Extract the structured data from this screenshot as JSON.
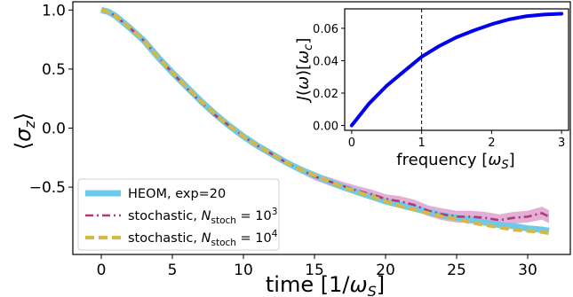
{
  "chart_data": [
    {
      "type": "line",
      "xlabel": "time [1/ω_S]",
      "ylabel": "⟨σ_z⟩",
      "xlim": [
        -2,
        33
      ],
      "ylim": [
        -1.07,
        1.07
      ],
      "x_ticks": [
        0,
        5,
        10,
        15,
        20,
        25,
        30
      ],
      "y_ticks": [
        1.0,
        0.5,
        0.0,
        -0.5
      ],
      "y_tick_labels": [
        "1.0",
        "0.5",
        "0.0",
        "−0.5"
      ],
      "legend_position": "lower-left",
      "series": [
        {
          "name": "HEOM, exp=20",
          "color": "#6ccbea",
          "style": "solid-thick",
          "x": [
            0,
            0.5,
            1,
            2,
            3,
            4,
            5,
            6,
            7,
            8,
            9,
            10,
            11,
            12,
            13,
            14,
            15,
            16,
            17,
            18,
            19,
            20,
            21,
            22,
            23,
            24,
            25,
            26,
            27,
            28,
            29,
            30,
            31,
            31.5
          ],
          "values": [
            1.0,
            0.985,
            0.95,
            0.85,
            0.74,
            0.6,
            0.47,
            0.35,
            0.23,
            0.12,
            0.02,
            -0.07,
            -0.15,
            -0.22,
            -0.29,
            -0.35,
            -0.4,
            -0.45,
            -0.5,
            -0.54,
            -0.58,
            -0.62,
            -0.65,
            -0.68,
            -0.71,
            -0.74,
            -0.76,
            -0.78,
            -0.8,
            -0.82,
            -0.83,
            -0.85,
            -0.86,
            -0.87
          ]
        },
        {
          "name": "stochastic, N_stoch = 10^3",
          "color": "#b1387a",
          "style": "dash-dot",
          "x": [
            0,
            0.5,
            1,
            2,
            3,
            4,
            5,
            6,
            7,
            8,
            9,
            10,
            11,
            12,
            13,
            14,
            15,
            16,
            17,
            18,
            19,
            20,
            21,
            22,
            23,
            24,
            25,
            26,
            27,
            28,
            29,
            30,
            31,
            31.5
          ],
          "values": [
            1.0,
            0.985,
            0.95,
            0.85,
            0.74,
            0.6,
            0.47,
            0.34,
            0.22,
            0.11,
            0.02,
            -0.07,
            -0.15,
            -0.22,
            -0.29,
            -0.35,
            -0.41,
            -0.45,
            -0.49,
            -0.53,
            -0.56,
            -0.6,
            -0.62,
            -0.65,
            -0.7,
            -0.73,
            -0.75,
            -0.75,
            -0.76,
            -0.78,
            -0.76,
            -0.75,
            -0.72,
            -0.75
          ],
          "band": [
            0.01,
            0.01,
            0.01,
            0.01,
            0.01,
            0.01,
            0.01,
            0.01,
            0.01,
            0.01,
            0.01,
            0.01,
            0.015,
            0.02,
            0.02,
            0.03,
            0.03,
            0.035,
            0.035,
            0.04,
            0.04,
            0.04,
            0.045,
            0.045,
            0.045,
            0.05,
            0.05,
            0.05,
            0.05,
            0.05,
            0.05,
            0.05,
            0.055,
            0.055
          ]
        },
        {
          "name": "stochastic, N_stoch = 10^4",
          "color": "#d4b94a",
          "style": "dashed-thick",
          "x": [
            0,
            0.5,
            1,
            2,
            3,
            4,
            5,
            6,
            7,
            8,
            9,
            10,
            11,
            12,
            13,
            14,
            15,
            16,
            17,
            18,
            19,
            20,
            21,
            22,
            23,
            24,
            25,
            26,
            27,
            28,
            29,
            30,
            31,
            31.5
          ],
          "values": [
            1.0,
            0.985,
            0.95,
            0.85,
            0.74,
            0.6,
            0.47,
            0.35,
            0.23,
            0.12,
            0.02,
            -0.07,
            -0.15,
            -0.22,
            -0.29,
            -0.35,
            -0.4,
            -0.45,
            -0.5,
            -0.54,
            -0.58,
            -0.62,
            -0.66,
            -0.69,
            -0.72,
            -0.75,
            -0.77,
            -0.8,
            -0.82,
            -0.84,
            -0.86,
            -0.87,
            -0.88,
            -0.89
          ]
        }
      ]
    },
    {
      "type": "line",
      "xlabel": "frequency [ω_S]",
      "ylabel": "J(ω)[ω_c]",
      "xlim": [
        -0.1,
        3.1
      ],
      "ylim": [
        -0.003,
        0.072
      ],
      "x_ticks": [
        0,
        1,
        2,
        3
      ],
      "y_ticks": [
        0.0,
        0.02,
        0.04,
        0.06
      ],
      "y_tick_labels": [
        "0.00",
        "0.02",
        "0.04",
        "0.06"
      ],
      "vline_x": 1,
      "series": [
        {
          "color": "#0000ee",
          "x": [
            0,
            0.25,
            0.5,
            0.75,
            1.0,
            1.25,
            1.5,
            1.75,
            2.0,
            2.25,
            2.5,
            2.75,
            3.0
          ],
          "values": [
            0.0,
            0.0136,
            0.0245,
            0.0335,
            0.0424,
            0.049,
            0.0545,
            0.0587,
            0.0625,
            0.0655,
            0.0675,
            0.0685,
            0.069
          ]
        }
      ]
    }
  ],
  "legend": {
    "entries": [
      {
        "prefix": "HEOM, exp=20",
        "math": ""
      },
      {
        "prefix": "stochastic, ",
        "math": "N_stoch = 10^3"
      },
      {
        "prefix": "stochastic, ",
        "math": "N_stoch = 10^4"
      }
    ]
  }
}
